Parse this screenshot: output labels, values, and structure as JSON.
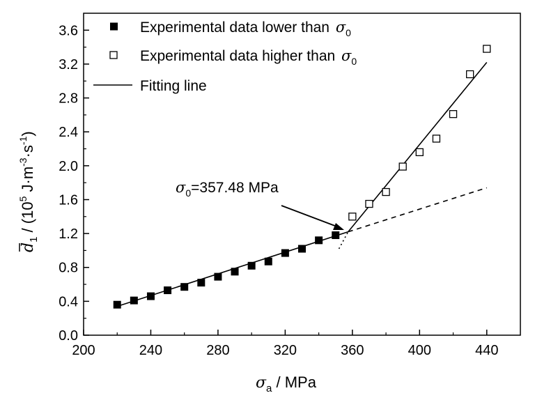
{
  "chart_data": {
    "type": "scatter",
    "xlabel": {
      "symbol": "σ",
      "sub": "a",
      "rest": " / MPa"
    },
    "ylabel": {
      "symbol": "d",
      "sub": "1",
      "pre": "",
      "rest": " / (10",
      "sup5": "5",
      "unit": " J·m",
      "supm3": "-3",
      "dot_s": "·s",
      "supm1": "-1",
      "close": ")"
    },
    "xlim": [
      200,
      460
    ],
    "ylim": [
      0.0,
      3.8
    ],
    "xticks": [
      200,
      240,
      280,
      320,
      360,
      400,
      440
    ],
    "yticks": [
      0.0,
      0.4,
      0.8,
      1.2,
      1.6,
      2.0,
      2.4,
      2.8,
      3.2,
      3.6
    ],
    "ytick_labels": [
      "0.0",
      "0.4",
      "0.8",
      "1.2",
      "1.6",
      "2.0",
      "2.4",
      "2.8",
      "3.2",
      "3.6"
    ],
    "xtick_labels": [
      "200",
      "240",
      "280",
      "320",
      "360",
      "400",
      "440"
    ],
    "series": [
      {
        "name": "Experimental data lower than σ0",
        "marker": "filled-square",
        "x": [
          220,
          230,
          240,
          250,
          260,
          270,
          280,
          290,
          300,
          310,
          320,
          330,
          340,
          350
        ],
        "y": [
          0.36,
          0.41,
          0.46,
          0.53,
          0.57,
          0.62,
          0.69,
          0.75,
          0.82,
          0.87,
          0.97,
          1.02,
          1.12,
          1.18
        ]
      },
      {
        "name": "Experimental data higher than σ0",
        "marker": "open-square",
        "x": [
          360,
          370,
          380,
          390,
          400,
          410,
          420,
          430,
          440
        ],
        "y": [
          1.4,
          1.55,
          1.69,
          1.99,
          2.16,
          2.32,
          2.61,
          3.08,
          3.38
        ]
      }
    ],
    "fit_lines": [
      {
        "name": "Fitting line",
        "style": "solid",
        "x": [
          220,
          357.48
        ],
        "y": [
          0.34,
          1.22
        ]
      },
      {
        "name": "Fitting line",
        "style": "solid",
        "x": [
          357.48,
          440
        ],
        "y": [
          1.22,
          3.22
        ]
      },
      {
        "name": "extension",
        "style": "dotted",
        "x": [
          352,
          357.48
        ],
        "y": [
          1.02,
          1.22
        ]
      },
      {
        "name": "extension",
        "style": "dashed",
        "x": [
          357.48,
          440
        ],
        "y": [
          1.22,
          1.74
        ]
      }
    ],
    "annotation": {
      "symbol": "σ",
      "sub": "0",
      "text": "=357.48 MPa",
      "x": 357.48,
      "y": 1.22
    },
    "legend": {
      "placement": "top-left",
      "items": [
        {
          "marker": "filled-square",
          "label": "Experimental data lower than ",
          "sym": "σ",
          "sub": "0"
        },
        {
          "marker": "open-square",
          "label": "Experimental data higher than  ",
          "sym": "σ",
          "sub": "0"
        },
        {
          "marker": "line",
          "label": "Fitting line",
          "sym": "",
          "sub": ""
        }
      ]
    }
  }
}
